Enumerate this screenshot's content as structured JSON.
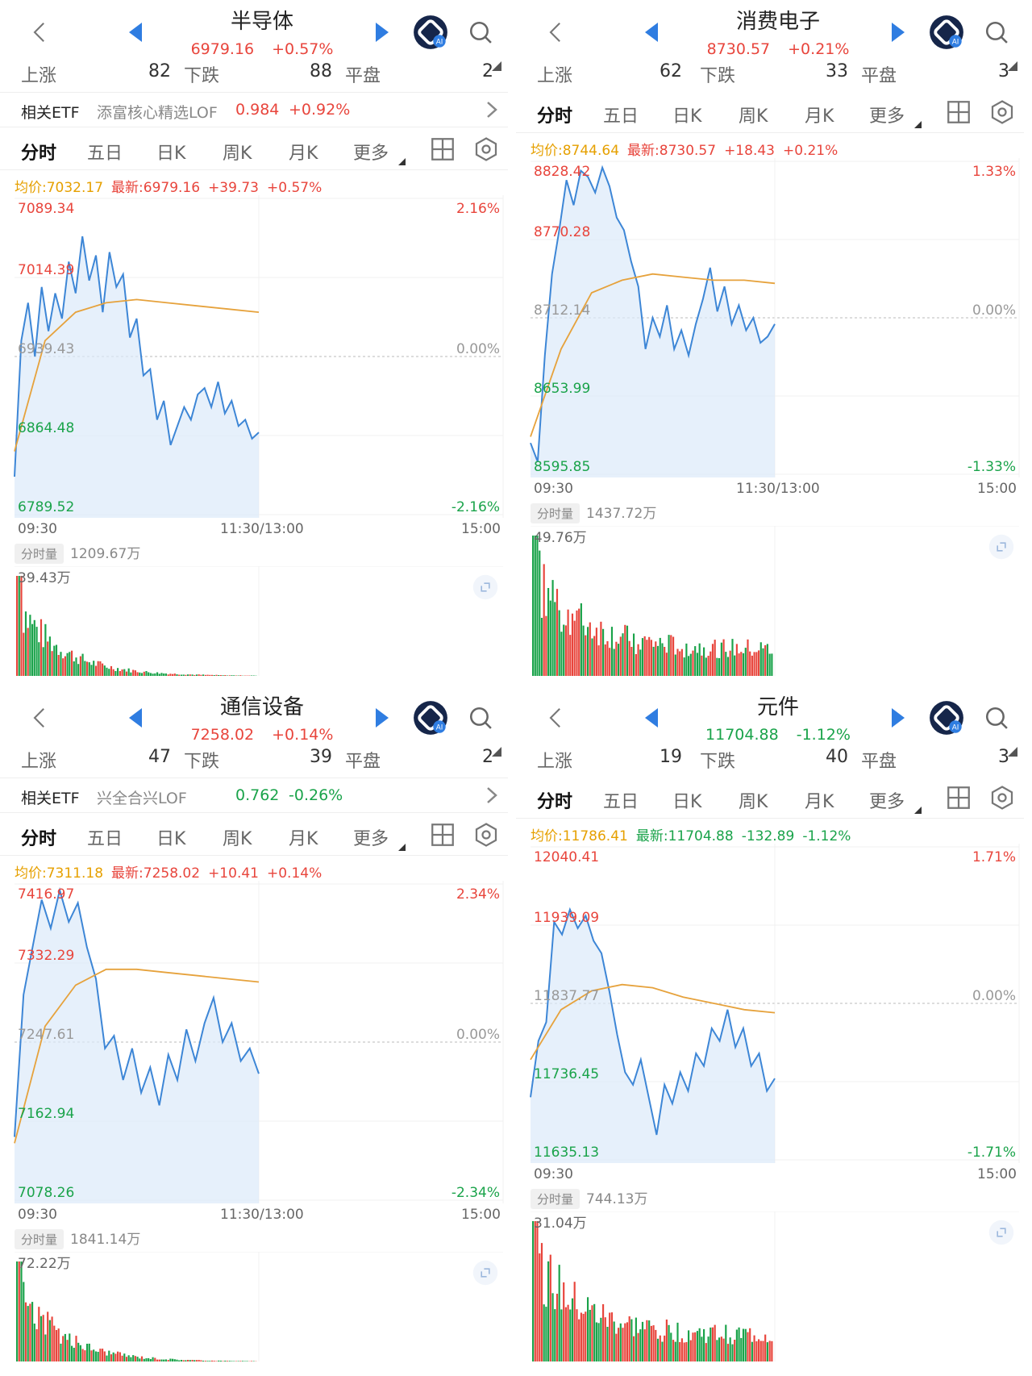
{
  "colors": {
    "up": "#e8453c",
    "down": "#1aa34a",
    "line": "#3d86d6",
    "avg": "#e6a23c",
    "fill": "#dceaf9",
    "arrow": "#2f7de1"
  },
  "panels": [
    {
      "title": "半导体",
      "price": "6979.16",
      "change": "+0.57%",
      "trend": "up",
      "stats": {
        "up_label": "上涨",
        "up_count": "82",
        "down_label": "下跌",
        "down_count": "88",
        "flat_label": "平盘",
        "flat_count": "2"
      },
      "etf": {
        "label": "相关ETF",
        "name": "添富核心精选LOF",
        "price": "0.984",
        "change": "+0.92%",
        "trend": "up"
      },
      "tabs": [
        "分时",
        "五日",
        "日K",
        "周K",
        "月K",
        "更多"
      ],
      "info": {
        "avg": "均价:7032.17",
        "latest": "最新:6979.16",
        "diff": "+39.73",
        "pct": "+0.57%",
        "trend": "up"
      },
      "y_labels": [
        "7089.34",
        "7014.39",
        "6939.43",
        "6864.48",
        "6789.52"
      ],
      "pct_labels": [
        "2.16%",
        "0.00%",
        "-2.16%"
      ],
      "times": [
        "09:30",
        "11:30/13:00",
        "15:00"
      ],
      "vol_button": "分时量",
      "vol_total": "1209.67万",
      "vol_max": "39.43万"
    },
    {
      "title": "消费电子",
      "price": "8730.57",
      "change": "+0.21%",
      "trend": "up",
      "stats": {
        "up_label": "上涨",
        "up_count": "62",
        "down_label": "下跌",
        "down_count": "33",
        "flat_label": "平盘",
        "flat_count": "3"
      },
      "tabs": [
        "分时",
        "五日",
        "日K",
        "周K",
        "月K",
        "更多"
      ],
      "info": {
        "avg": "均价:8744.64",
        "latest": "最新:8730.57",
        "diff": "+18.43",
        "pct": "+0.21%",
        "trend": "up"
      },
      "y_labels": [
        "8828.42",
        "8770.28",
        "8712.14",
        "8653.99",
        "8595.85"
      ],
      "pct_labels": [
        "1.33%",
        "0.00%",
        "-1.33%"
      ],
      "times": [
        "09:30",
        "11:30/13:00",
        "15:00"
      ],
      "vol_button": "分时量",
      "vol_total": "1437.72万",
      "vol_max": "49.76万"
    },
    {
      "title": "通信设备",
      "price": "7258.02",
      "change": "+0.14%",
      "trend": "up",
      "stats": {
        "up_label": "上涨",
        "up_count": "47",
        "down_label": "下跌",
        "down_count": "39",
        "flat_label": "平盘",
        "flat_count": "2"
      },
      "etf": {
        "label": "相关ETF",
        "name": "兴全合兴LOF",
        "price": "0.762",
        "change": "-0.26%",
        "trend": "down"
      },
      "tabs": [
        "分时",
        "五日",
        "日K",
        "周K",
        "月K",
        "更多"
      ],
      "info": {
        "avg": "均价:7311.18",
        "latest": "最新:7258.02",
        "diff": "+10.41",
        "pct": "+0.14%",
        "trend": "up"
      },
      "y_labels": [
        "7416.97",
        "7332.29",
        "7247.61",
        "7162.94",
        "7078.26"
      ],
      "pct_labels": [
        "2.34%",
        "0.00%",
        "-2.34%"
      ],
      "times": [
        "09:30",
        "11:30/13:00",
        "15:00"
      ],
      "vol_button": "分时量",
      "vol_total": "1841.14万",
      "vol_max": "72.22万"
    },
    {
      "title": "元件",
      "price": "11704.88",
      "change": "-1.12%",
      "trend": "down",
      "stats": {
        "up_label": "上涨",
        "up_count": "19",
        "down_label": "下跌",
        "down_count": "40",
        "flat_label": "平盘",
        "flat_count": "3"
      },
      "tabs": [
        "分时",
        "五日",
        "日K",
        "周K",
        "月K",
        "更多"
      ],
      "info": {
        "avg": "均价:11786.41",
        "latest": "最新:11704.88",
        "diff": "-132.89",
        "pct": "-1.12%",
        "trend": "down"
      },
      "y_labels": [
        "12040.41",
        "11939.09",
        "11837.77",
        "11736.45",
        "11635.13"
      ],
      "pct_labels": [
        "1.71%",
        "0.00%",
        "-1.71%"
      ],
      "times": [
        "09:30",
        "",
        "15:00"
      ],
      "vol_button": "分时量",
      "vol_total": "744.13万",
      "vol_max": "31.04万"
    }
  ]
}
